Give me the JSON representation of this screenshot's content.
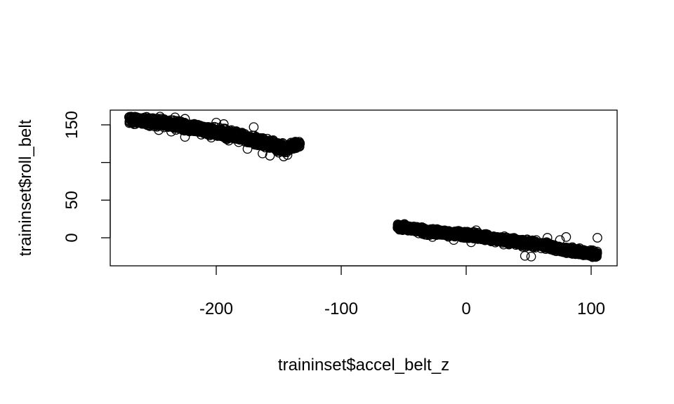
{
  "chart_data": {
    "type": "scatter",
    "title": "",
    "xlabel": "traininset$accel_belt_z",
    "ylabel": "traininset$roll_belt",
    "xlim": [
      -275,
      120
    ],
    "ylim": [
      -30,
      170
    ],
    "xticks": [
      -200,
      -100,
      0,
      100
    ],
    "yticks": [
      0,
      50,
      100,
      150
    ],
    "xtick_labels": [
      "-200",
      "-100",
      "0",
      "100"
    ],
    "ytick_labels": [
      "0",
      "50",
      "",
      "150"
    ],
    "marker": "open-circle",
    "clusters": [
      {
        "x_range": [
          -270,
          -133
        ],
        "trend": [
          [
            -270,
            157
          ],
          [
            -240,
            152
          ],
          [
            -210,
            143
          ],
          [
            -185,
            136
          ],
          [
            -160,
            126
          ],
          [
            -145,
            119
          ],
          [
            -133,
            124
          ]
        ],
        "spread": 8
      },
      {
        "x_range": [
          -55,
          105
        ],
        "trend": [
          [
            -55,
            15
          ],
          [
            -30,
            8
          ],
          [
            0,
            4
          ],
          [
            30,
            -3
          ],
          [
            55,
            -8
          ],
          [
            80,
            -16
          ],
          [
            103,
            -22
          ]
        ],
        "spread": 6
      }
    ],
    "points": [
      [
        -267,
        158
      ],
      [
        -262,
        158
      ],
      [
        -255,
        157
      ],
      [
        -250,
        155
      ],
      [
        -246,
        143
      ],
      [
        -240,
        154
      ],
      [
        -236,
        141
      ],
      [
        -233,
        160
      ],
      [
        -228,
        150
      ],
      [
        -225,
        134
      ],
      [
        -220,
        148
      ],
      [
        -216,
        142
      ],
      [
        -212,
        137
      ],
      [
        -208,
        146
      ],
      [
        -204,
        133
      ],
      [
        -198,
        140
      ],
      [
        -194,
        151
      ],
      [
        -190,
        129
      ],
      [
        -186,
        138
      ],
      [
        -182,
        127
      ],
      [
        -178,
        133
      ],
      [
        -175,
        118
      ],
      [
        -171,
        131
      ],
      [
        -167,
        123
      ],
      [
        -163,
        112
      ],
      [
        -160,
        129
      ],
      [
        -157,
        109
      ],
      [
        -153,
        120
      ],
      [
        -150,
        113
      ],
      [
        -146,
        108
      ],
      [
        -143,
        110
      ],
      [
        -139,
        126
      ],
      [
        -133,
        125
      ],
      [
        -170,
        147
      ],
      [
        -200,
        153
      ],
      [
        -225,
        158
      ],
      [
        -245,
        161
      ],
      [
        -53,
        15
      ],
      [
        -48,
        14
      ],
      [
        -43,
        13
      ],
      [
        -37,
        9
      ],
      [
        -33,
        4
      ],
      [
        -27,
        1
      ],
      [
        -20,
        6
      ],
      [
        -15,
        9
      ],
      [
        -10,
        -3
      ],
      [
        -5,
        2
      ],
      [
        0,
        7
      ],
      [
        4,
        -6
      ],
      [
        8,
        10
      ],
      [
        12,
        -2
      ],
      [
        16,
        5
      ],
      [
        20,
        -4
      ],
      [
        25,
        1
      ],
      [
        30,
        -9
      ],
      [
        35,
        -5
      ],
      [
        40,
        -2
      ],
      [
        45,
        -12
      ],
      [
        50,
        -7
      ],
      [
        52,
        -25
      ],
      [
        56,
        -3
      ],
      [
        60,
        -14
      ],
      [
        65,
        0
      ],
      [
        70,
        -10
      ],
      [
        72,
        -18
      ],
      [
        75,
        -3
      ],
      [
        80,
        1
      ],
      [
        85,
        -19
      ],
      [
        90,
        -16
      ],
      [
        95,
        -20
      ],
      [
        100,
        -23
      ],
      [
        103,
        -25
      ],
      [
        105,
        0
      ],
      [
        47,
        -24
      ]
    ]
  }
}
